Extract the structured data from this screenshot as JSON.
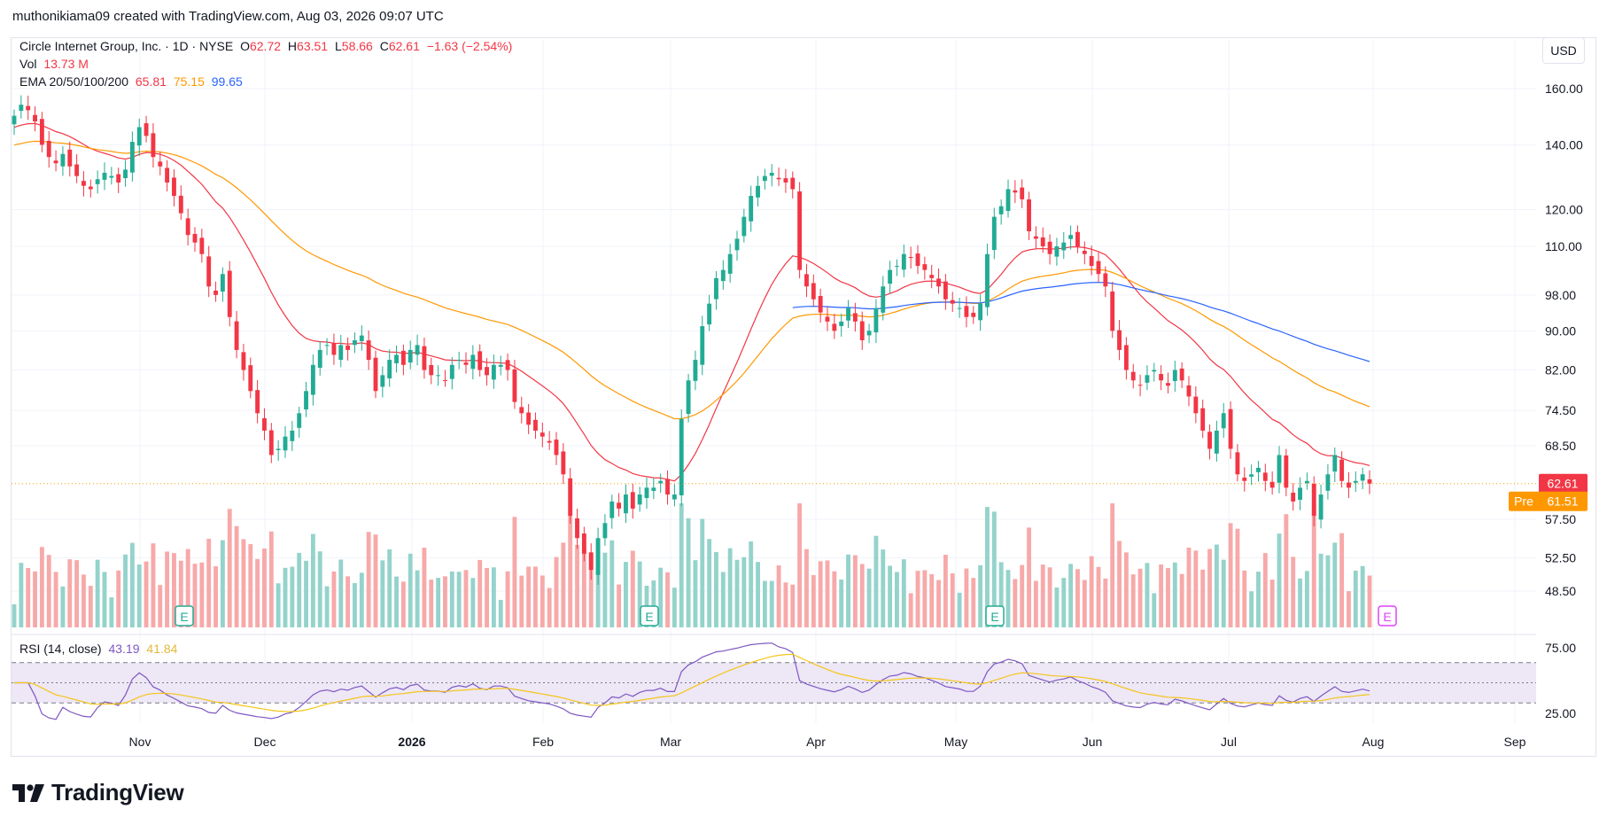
{
  "header": {
    "credit": "muthonikiama09 created with TradingView.com, Aug 03, 2026 09:07 UTC"
  },
  "legend": {
    "symbol": "Circle Internet Group, Inc. · 1D · NYSE",
    "open_label": "O",
    "open": "62.72",
    "high_label": "H",
    "high": "63.51",
    "low_label": "L",
    "low": "58.66",
    "close_label": "C",
    "close": "62.61",
    "change": "−1.63 (−2.54%)",
    "vol_label": "Vol",
    "vol": "13.73 M",
    "ema_label": "EMA 20/50/100/200",
    "ema20": "65.81",
    "ema50": "75.15",
    "ema100": "99.65",
    "rsi_label": "RSI (14, close)",
    "rsi": "43.19",
    "rsi_ma": "41.84"
  },
  "currency_button": "USD",
  "brand": "TradingView",
  "colors": {
    "up": "#22ab94",
    "down": "#f23645",
    "vol_up": "#94d3cb",
    "vol_down": "#f7a9a9",
    "ema20": "#f23645",
    "ema50": "#ff9800",
    "ema100": "#2962ff",
    "rsi": "#7e57c2",
    "rsi_ma": "#f5c518",
    "rsi_band": "#ede7f6",
    "premarket": "#ff9800",
    "earnings": "#22ab94",
    "earnings_upcoming": "#e040fb"
  },
  "chart_data": {
    "type": "candlestick",
    "title": "Circle Internet Group, Inc. · 1D · NYSE",
    "y_scale": "log",
    "y_ticks": [
      160,
      140,
      120,
      110,
      98,
      90,
      82,
      74.5,
      68.5,
      57.5,
      52.5,
      48.5
    ],
    "y_tick_labels": [
      "160.00",
      "140.00",
      "120.00",
      "110.00",
      "98.00",
      "90.00",
      "82.00",
      "74.50",
      "68.50",
      "57.50",
      "52.50",
      "48.50"
    ],
    "x_tick_labels": [
      "Nov",
      "Dec",
      "2026",
      "Feb",
      "Mar",
      "Apr",
      "May",
      "Jun",
      "Jul",
      "Aug",
      "Sep"
    ],
    "ohlc_close_series": [
      150,
      154,
      152,
      148,
      140,
      136,
      134,
      137,
      133,
      130,
      127,
      126,
      129,
      131,
      130,
      128,
      132,
      141,
      146,
      143,
      136,
      133,
      128,
      124,
      119,
      113,
      111,
      108,
      100,
      98,
      103,
      93,
      86,
      82,
      78,
      74,
      71,
      67,
      68,
      70,
      71,
      74,
      78,
      83,
      86,
      87,
      85,
      87,
      86,
      88,
      89,
      84,
      78,
      81,
      84,
      85,
      83,
      86,
      87,
      82,
      81,
      81,
      80,
      83,
      84,
      83,
      85,
      82,
      81,
      83,
      83,
      82,
      76,
      74,
      72,
      71,
      70,
      69,
      67,
      64,
      58,
      55,
      53,
      51,
      55,
      57,
      60,
      59,
      61,
      59,
      61,
      62,
      62,
      63,
      61,
      61,
      73,
      80,
      84,
      91,
      96,
      102,
      104,
      108,
      112,
      118,
      124,
      127,
      130,
      131,
      129,
      128,
      126,
      104,
      100,
      97,
      94,
      92,
      90,
      92,
      95,
      92,
      88,
      90,
      95,
      100,
      104,
      105,
      108,
      107,
      105,
      104,
      102,
      100,
      97,
      96,
      95,
      93,
      93,
      96,
      108,
      118,
      121,
      126,
      125,
      123,
      114,
      112,
      110,
      108,
      110,
      111,
      113,
      110,
      108,
      105,
      103,
      100,
      90,
      86,
      82,
      80,
      79,
      81,
      82,
      80,
      79,
      82,
      80,
      77,
      74,
      71,
      68,
      71,
      74,
      68,
      64,
      63,
      64,
      65,
      63,
      62,
      67,
      62,
      60,
      62,
      63,
      58,
      61,
      64,
      67,
      63,
      62,
      63,
      64,
      62.61
    ],
    "last_close": 62.61,
    "premarket": 61.51,
    "premarket_label": "Pre",
    "rsi_ticks": [
      75,
      25
    ],
    "rsi_tick_labels": [
      "75.00",
      "25.00"
    ],
    "earnings_marker": "E"
  }
}
